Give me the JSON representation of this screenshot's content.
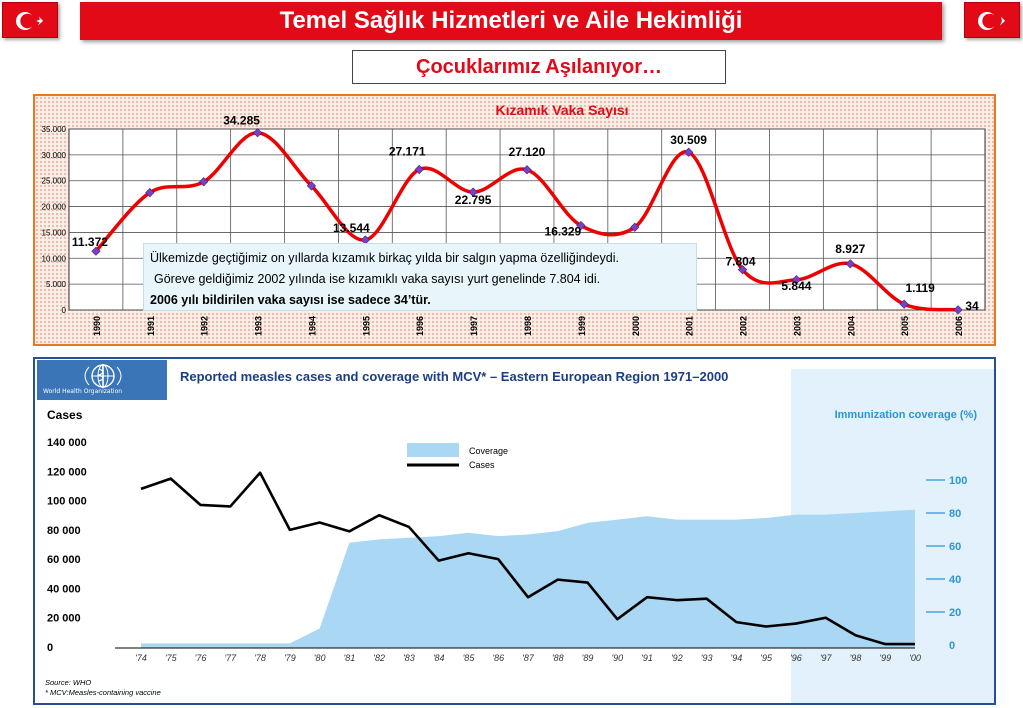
{
  "header": {
    "title": "Temel Sağlık Hizmetleri ve Aile Hekimliği",
    "subtitle": "Çocuklarımız Aşılanıyor…",
    "flag_color": "#e30a17"
  },
  "info_box": {
    "line1": "Ülkemizde geçtiğimiz on yıllarda kızamık birkaç yılda bir salgın yapma özelliğindeydi.",
    "line2": "Göreve geldiğimiz 2002 yılında ise kızamıklı vaka sayısı yurt genelinde 7.804 idi.",
    "line3": "2006 yılı bildirilen vaka sayısı ise sadece 34’tür."
  },
  "who_logo": {
    "text": "World Health Organization",
    "icon": "who-emblem-icon"
  },
  "chart_data": [
    {
      "type": "line",
      "title": "Kızamık Vaka Sayısı",
      "x": [
        "1990",
        "1991",
        "1992",
        "1993",
        "1994",
        "1995",
        "1996",
        "1997",
        "1998",
        "1999",
        "2000",
        "2001",
        "2002",
        "2003",
        "2004",
        "2005",
        "2006"
      ],
      "values": [
        11372,
        22700,
        24800,
        34285,
        24000,
        13544,
        27171,
        22795,
        27120,
        16329,
        16000,
        30509,
        7804,
        5844,
        8927,
        1119,
        34
      ],
      "data_labels": [
        "11.372",
        "",
        "",
        "34.285",
        "",
        "13.544",
        "27.171",
        "22.795",
        "27.120",
        "16.329",
        "",
        "30.509",
        "7.804",
        "5.844",
        "8.927",
        "1.119",
        "34"
      ],
      "ylim": [
        0,
        35000
      ],
      "yticks": [
        0,
        5000,
        10000,
        15000,
        20000,
        25000,
        30000,
        35000
      ],
      "ytick_labels": [
        "0",
        "5.000",
        "10.000",
        "15.000",
        "20.000",
        "25.000",
        "30.000",
        "35.000"
      ],
      "line_color": "#ee0000",
      "marker_color": "#7b3fc4",
      "grid": true
    },
    {
      "type": "area",
      "title": "Reported measles cases and coverage with MCV* – Eastern European Region 1971–2000",
      "x": [
        "'74",
        "'75",
        "'76",
        "'77",
        "'78",
        "'79",
        "'80",
        "'81",
        "'82",
        "'83",
        "'84",
        "'85",
        "'86",
        "'87",
        "'88",
        "'89",
        "'90",
        "'91",
        "'92",
        "'93",
        "'94",
        "'95",
        "'96",
        "'97",
        "'98",
        "'99",
        "'00"
      ],
      "series": [
        {
          "name": "Cases",
          "type": "line",
          "color": "#000000",
          "values": [
            108000,
            115000,
            97000,
            96000,
            119000,
            80000,
            85000,
            79000,
            90000,
            82000,
            59000,
            64000,
            60000,
            34000,
            46000,
            44000,
            19000,
            34000,
            32000,
            33000,
            17000,
            14000,
            16000,
            20000,
            8000,
            2000,
            2000
          ]
        },
        {
          "name": "Coverage",
          "type": "area",
          "color": "#aad8f4",
          "values": [
            1,
            1,
            1,
            1,
            1,
            1,
            10,
            62,
            64,
            65,
            66,
            68,
            66,
            67,
            69,
            74,
            76,
            78,
            76,
            76,
            76,
            77,
            79,
            79,
            80,
            81,
            82
          ]
        }
      ],
      "ylabel": "Cases",
      "y2label": "Immunization coverage (%)",
      "yticks": [
        0,
        20000,
        40000,
        60000,
        80000,
        100000,
        120000,
        140000
      ],
      "ytick_labels": [
        "0",
        "20 000",
        "40 000",
        "60 000",
        "80 000",
        "100 000",
        "120 000",
        "140 000"
      ],
      "ylim": [
        0,
        140000
      ],
      "y2ticks": [
        0,
        20,
        40,
        60,
        80,
        100
      ],
      "y2tick_labels": [
        "0",
        "20",
        "40",
        "60",
        "80",
        "100"
      ],
      "y2lim": [
        0,
        100
      ],
      "legend": [
        "Coverage",
        "Cases"
      ],
      "legend_position": "top-center",
      "source": "Source: WHO",
      "footnote": "* MCV:Measles-containing vaccine",
      "title_color": "#1a3f86",
      "y2_color": "#2a96d8"
    }
  ]
}
